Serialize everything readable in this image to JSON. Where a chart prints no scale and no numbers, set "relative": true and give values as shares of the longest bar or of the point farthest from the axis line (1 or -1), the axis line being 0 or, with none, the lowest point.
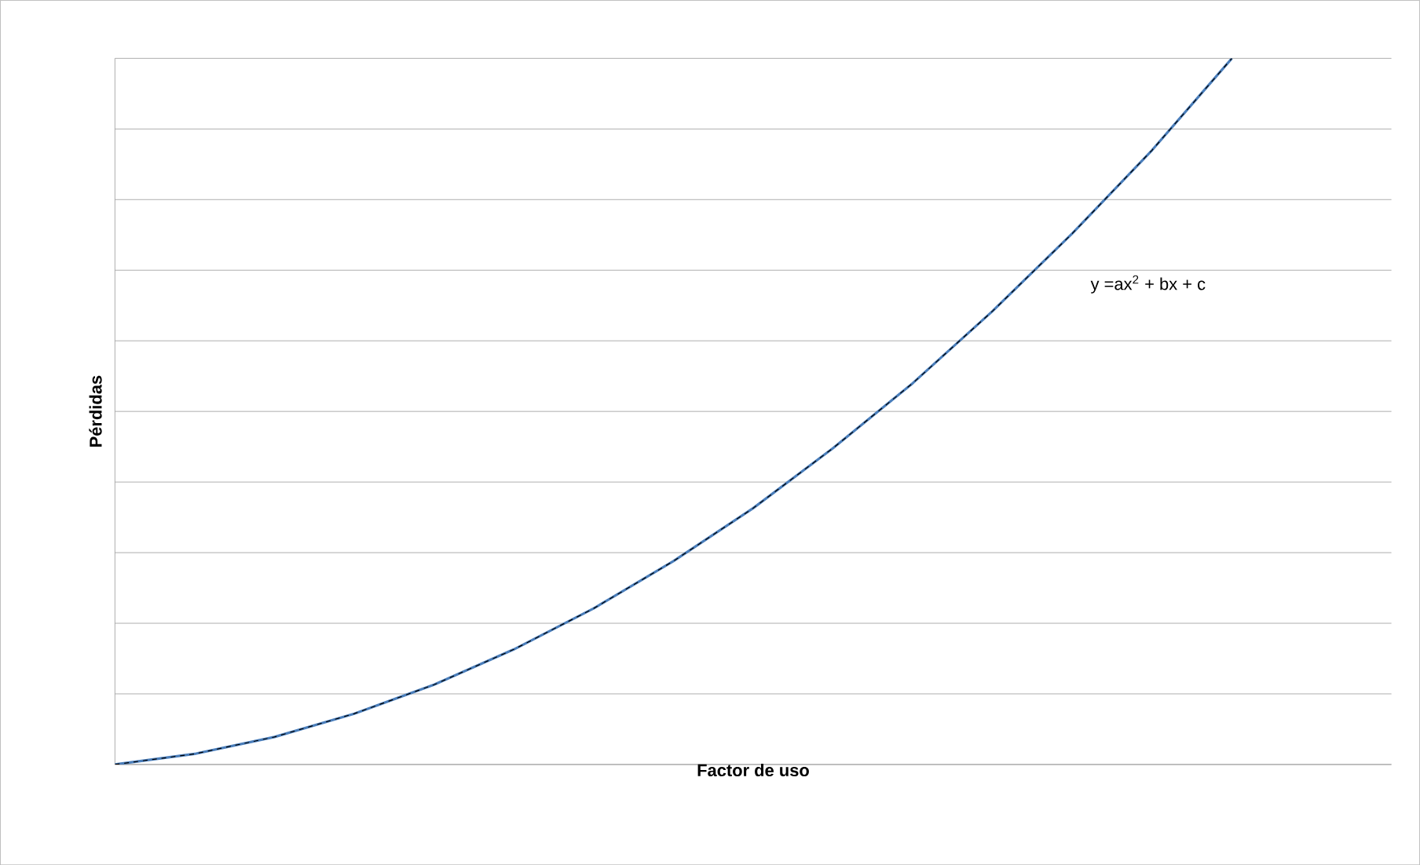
{
  "chart_data": {
    "type": "line",
    "xlabel": "Factor de uso",
    "ylabel": "Pérdidas",
    "relative": true,
    "grid": "y",
    "tick_labels": false,
    "categories": [
      null,
      null,
      null,
      null,
      null,
      null,
      null,
      null,
      null,
      null,
      null,
      null,
      null,
      null,
      null,
      null,
      null
    ],
    "series": [
      {
        "color": "#4a7ebb",
        "values": [
          0,
          0.015,
          0.039,
          0.072,
          0.113,
          0.163,
          0.221,
          0.288,
          0.363,
          0.448,
          0.54,
          0.642,
          0.752,
          0.87,
          1,
          null,
          null
        ]
      }
    ],
    "annotations": [
      "y =ax$^{2}$ + bx + c"
    ]
  }
}
